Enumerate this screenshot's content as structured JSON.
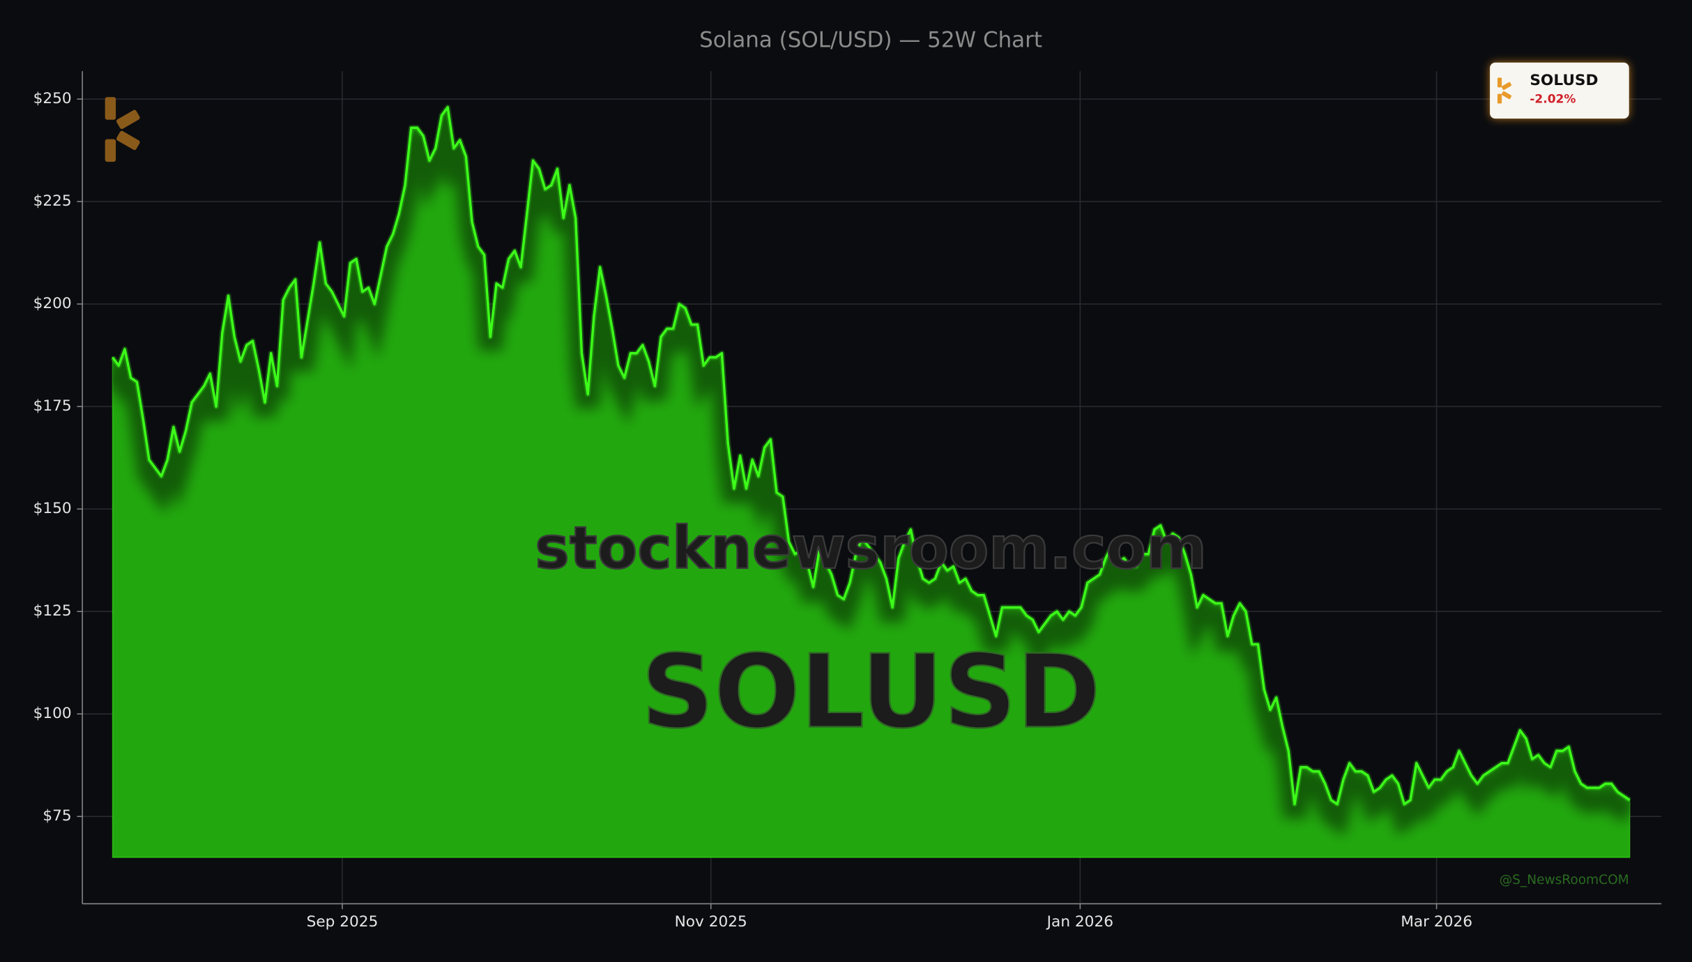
{
  "chart_data": {
    "type": "area",
    "title": "Solana (SOL/USD) — 52W Chart",
    "values": [
      187,
      185,
      189,
      182,
      181,
      172,
      162,
      160,
      158,
      162,
      170,
      164,
      169,
      176,
      178,
      180,
      183,
      175,
      193,
      202,
      192,
      186,
      190,
      191,
      184,
      176,
      188,
      180,
      201,
      204,
      206,
      187,
      196,
      205,
      215,
      205,
      203,
      200,
      197,
      210,
      211,
      203,
      204,
      200,
      207,
      214,
      217,
      222,
      229,
      243,
      243,
      241,
      235,
      238,
      246,
      248,
      238,
      240,
      236,
      220,
      214,
      212,
      192,
      205,
      204,
      211,
      213,
      209,
      222,
      235,
      233,
      228,
      229,
      233,
      221,
      229,
      221,
      188,
      178,
      197,
      209,
      202,
      194,
      185,
      182,
      188,
      188,
      190,
      186,
      180,
      192,
      194,
      194,
      200,
      199,
      195,
      195,
      185,
      187,
      187,
      188,
      166,
      155,
      163,
      155,
      162,
      158,
      165,
      167,
      154,
      153,
      142,
      139,
      140,
      137,
      131,
      140,
      137,
      134,
      129,
      128,
      132,
      139,
      143,
      141,
      139,
      137,
      133,
      126,
      138,
      142,
      145,
      138,
      133,
      132,
      133,
      137,
      135,
      136,
      132,
      133,
      130,
      129,
      129,
      124,
      119,
      126,
      126,
      126,
      126,
      124,
      123,
      120,
      122,
      124,
      125,
      123,
      125,
      124,
      126,
      132,
      133,
      134,
      138,
      141,
      137,
      138,
      136,
      136,
      139,
      139,
      145,
      146,
      142,
      144,
      143,
      139,
      134,
      126,
      129,
      128,
      127,
      127,
      119,
      124,
      127,
      125,
      117,
      117,
      106,
      101,
      104,
      97,
      91,
      78,
      87,
      87,
      86,
      86,
      83,
      79,
      78,
      84,
      88,
      86,
      86,
      85,
      81,
      82,
      84,
      85,
      83,
      78,
      79,
      88,
      85,
      82,
      84,
      84,
      86,
      87,
      91,
      88,
      85,
      83,
      85,
      86,
      87,
      88,
      88,
      92,
      96,
      94,
      89,
      90,
      88,
      87,
      91,
      91,
      92,
      86,
      83,
      82,
      82,
      82,
      83,
      83,
      81,
      80,
      79
    ],
    "color": "#22a80e",
    "line_color": "#3dff1a",
    "fill_base": 65,
    "xlim": [
      -4.96,
      254.2
    ],
    "xticks": [
      {
        "value": 37.7,
        "label": "Sep 2025"
      },
      {
        "value": 98.2,
        "label": "Nov 2025"
      },
      {
        "value": 158.8,
        "label": "Jan 2026"
      },
      {
        "value": 217.3,
        "label": "Mar 2026"
      }
    ],
    "ylim": [
      53.7,
      256.8
    ],
    "yticks": [
      {
        "value": 75,
        "label": "$75"
      },
      {
        "value": 100,
        "label": "$100"
      },
      {
        "value": 125,
        "label": "$125"
      },
      {
        "value": 150,
        "label": "$150"
      },
      {
        "value": 175,
        "label": "$175"
      },
      {
        "value": 200,
        "label": "$200"
      },
      {
        "value": 225,
        "label": "$225"
      },
      {
        "value": 250,
        "label": "$250"
      }
    ],
    "grid": true
  },
  "watermarks": {
    "site": "stocknewsroom.com",
    "symbol": "SOLUSD",
    "handle": "@S_NewsRoomCOM"
  },
  "badge": {
    "symbol": "SOLUSD",
    "change": "-2.02%"
  }
}
